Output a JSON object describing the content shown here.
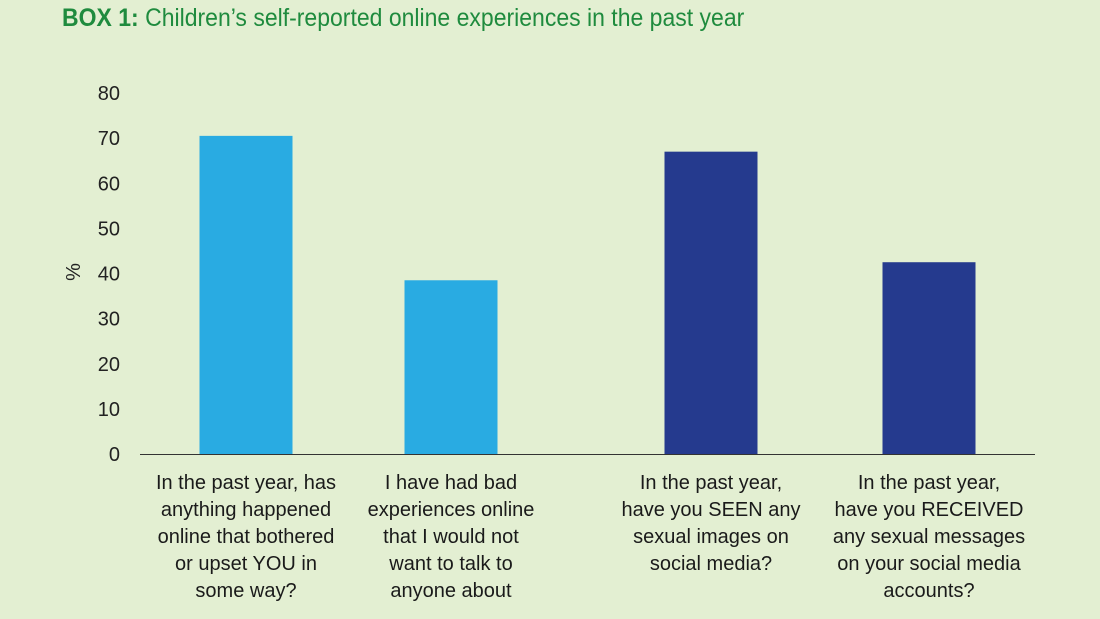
{
  "title": {
    "lead": "BOX 1:",
    "text": "Children’s self-reported online experiences in the past year"
  },
  "chart_data": {
    "type": "bar",
    "title": "BOX 1: Children’s self-reported online experiences in the past year",
    "xlabel": "",
    "ylabel": "%",
    "ylim": [
      0,
      80
    ],
    "yticks": [
      0,
      10,
      20,
      30,
      40,
      50,
      60,
      70,
      80
    ],
    "grid": false,
    "categories": [
      "In the past year, has anything happened online that bothered or upset YOU in some way?",
      "I have had bad experiences online that I would not want to talk to anyone about",
      "In the past year, have you SEEN any sexual images on social media?",
      "In the past year, have you RECEIVED any sexual messages on your social media accounts?"
    ],
    "category_lines": [
      [
        "In the past year, has",
        "anything happened",
        "online that bothered",
        "or upset YOU in",
        "some way?"
      ],
      [
        "I have had bad",
        "experiences online",
        "that I would not",
        "want to talk to",
        "anyone about"
      ],
      [
        "In the past year,",
        "have you SEEN any",
        "sexual images on",
        "social media?"
      ],
      [
        "In the past year,",
        "have you RECEIVED",
        "any sexual messages",
        "on your social media",
        "accounts?"
      ]
    ],
    "values": [
      70.5,
      38.5,
      67,
      42.5
    ],
    "colors": [
      "#29abe2",
      "#29abe2",
      "#253a8e",
      "#253a8e"
    ]
  }
}
